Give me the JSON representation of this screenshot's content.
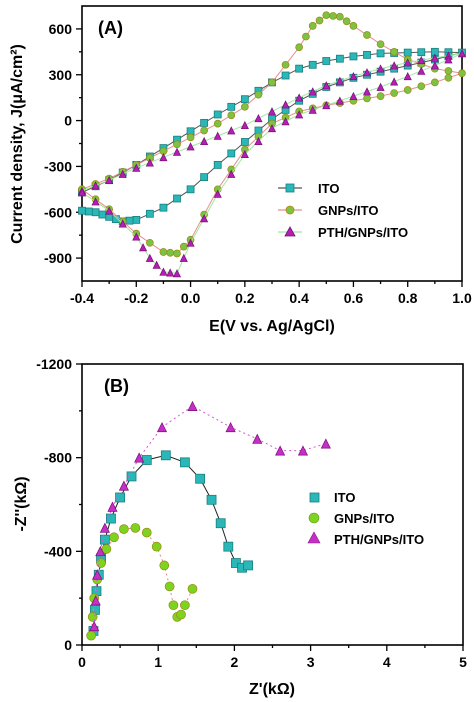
{
  "chart_data": [
    {
      "panel_label": "(A)",
      "type": "line",
      "xlabel": "E(V vs. Ag/AgCl)",
      "ylabel": "Current density, J(μA/cm²)",
      "xlim": [
        -0.4,
        1.0
      ],
      "ylim": [
        -1050,
        750
      ],
      "xticks": [
        -0.4,
        -0.2,
        0.0,
        0.2,
        0.4,
        0.6,
        0.8,
        1.0
      ],
      "xtick_labels": [
        "-0.4",
        "-0.2",
        "0.0",
        "0.2",
        "0.4",
        "0.6",
        "0.8",
        "1.0"
      ],
      "yticks": [
        -900,
        -600,
        -300,
        0,
        300,
        600
      ],
      "ytick_labels": [
        "-900",
        "-600",
        "-300",
        "0",
        "300",
        "600"
      ],
      "legend_position": "lower-right",
      "series": [
        {
          "name": "ITO",
          "color": "#2ab7b7",
          "line_color": "#555555",
          "marker": "square",
          "x": [
            -0.4,
            -0.3,
            -0.2,
            -0.1,
            0.0,
            0.1,
            0.2,
            0.3,
            0.4,
            0.5,
            0.6,
            0.7,
            0.8,
            0.9,
            1.0,
            0.9,
            0.8,
            0.7,
            0.6,
            0.5,
            0.4,
            0.3,
            0.2,
            0.1,
            0.0,
            -0.1,
            -0.2,
            -0.25,
            -0.3,
            -0.35,
            -0.4
          ],
          "y": [
            -470,
            -390,
            -290,
            -180,
            -70,
            40,
            140,
            250,
            340,
            390,
            420,
            440,
            445,
            450,
            445,
            400,
            360,
            320,
            280,
            220,
            130,
            10,
            -140,
            -290,
            -450,
            -570,
            -650,
            -660,
            -630,
            -600,
            -590
          ]
        },
        {
          "name": "GNPs/ITO",
          "color": "#7dc242",
          "line_color": "#e88f8f",
          "marker": "circle",
          "x": [
            -0.4,
            -0.3,
            -0.2,
            -0.1,
            0.0,
            0.1,
            0.2,
            0.3,
            0.4,
            0.45,
            0.5,
            0.55,
            0.6,
            0.7,
            0.8,
            0.9,
            1.0,
            0.9,
            0.8,
            0.7,
            0.6,
            0.5,
            0.4,
            0.3,
            0.2,
            0.1,
            0.0,
            -0.05,
            -0.1,
            -0.2,
            -0.3,
            -0.4
          ],
          "y": [
            -450,
            -380,
            -290,
            -200,
            -110,
            -20,
            90,
            250,
            480,
            620,
            690,
            680,
            620,
            500,
            400,
            340,
            310,
            250,
            200,
            160,
            130,
            100,
            60,
            -20,
            -190,
            -450,
            -780,
            -870,
            -860,
            -740,
            -580,
            -450
          ]
        },
        {
          "name": "PTH/GNPs/ITO",
          "color": "#b21fb2",
          "line_color": "#a0e8a0",
          "marker": "triangle",
          "x": [
            -0.4,
            -0.3,
            -0.2,
            -0.1,
            0.0,
            0.1,
            0.2,
            0.3,
            0.4,
            0.5,
            0.6,
            0.7,
            0.8,
            0.9,
            1.0,
            0.9,
            0.8,
            0.7,
            0.6,
            0.5,
            0.4,
            0.3,
            0.2,
            0.1,
            0.0,
            -0.05,
            -0.1,
            -0.15,
            -0.2,
            -0.3,
            -0.4
          ],
          "y": [
            -460,
            -390,
            -310,
            -240,
            -170,
            -100,
            -30,
            60,
            150,
            230,
            290,
            340,
            380,
            410,
            440,
            360,
            290,
            220,
            160,
            100,
            40,
            -50,
            -220,
            -480,
            -800,
            -1000,
            -990,
            -900,
            -760,
            -590,
            -470
          ]
        }
      ]
    },
    {
      "panel_label": "(B)",
      "type": "scatter",
      "xlabel": "Z'(kΩ)",
      "ylabel": "-Z''(kΩ)",
      "xlim": [
        0,
        5
      ],
      "ylim": [
        0,
        -1200
      ],
      "xticks": [
        0,
        1,
        2,
        3,
        4,
        5
      ],
      "xtick_labels": [
        "0",
        "1",
        "2",
        "3",
        "4",
        "5"
      ],
      "yticks": [
        0,
        -400,
        -800,
        -1200
      ],
      "ytick_labels": [
        "0",
        "-400",
        "-800",
        "-1200"
      ],
      "legend_position": "right",
      "series": [
        {
          "name": "ITO",
          "color": "#2ab7b7",
          "line_color": "#222222",
          "line_style": "solid",
          "marker": "square",
          "x": [
            0.15,
            0.17,
            0.19,
            0.22,
            0.25,
            0.3,
            0.38,
            0.5,
            0.65,
            0.85,
            1.1,
            1.35,
            1.55,
            1.7,
            1.82,
            1.92,
            2.02,
            2.1,
            2.18
          ],
          "y": [
            -60,
            -150,
            -230,
            -300,
            -370,
            -450,
            -540,
            -630,
            -720,
            -790,
            -810,
            -780,
            -710,
            -620,
            -520,
            -420,
            -350,
            -330,
            -340
          ]
        },
        {
          "name": "GNPs/ITO",
          "color": "#7ed321",
          "line_color": "#d98c8c",
          "line_style": "dotted",
          "marker": "circle",
          "x": [
            0.12,
            0.14,
            0.16,
            0.2,
            0.25,
            0.32,
            0.42,
            0.55,
            0.7,
            0.85,
            0.98,
            1.08,
            1.15,
            1.2,
            1.25,
            1.3,
            1.35,
            1.45
          ],
          "y": [
            -40,
            -120,
            -200,
            -280,
            -350,
            -410,
            -460,
            -495,
            -500,
            -480,
            -420,
            -340,
            -250,
            -170,
            -120,
            -130,
            -170,
            -240
          ]
        },
        {
          "name": "PTH/GNPs/ITO",
          "color": "#c62fc6",
          "line_color": "#d25ad2",
          "line_style": "dotted",
          "marker": "triangle",
          "x": [
            0.16,
            0.18,
            0.2,
            0.24,
            0.3,
            0.4,
            0.55,
            0.75,
            1.05,
            1.45,
            1.95,
            2.3,
            2.6,
            2.9,
            3.2
          ],
          "y": [
            -80,
            -190,
            -300,
            -400,
            -500,
            -590,
            -680,
            -800,
            -930,
            -1020,
            -930,
            -880,
            -830,
            -830,
            -860
          ]
        }
      ]
    }
  ]
}
